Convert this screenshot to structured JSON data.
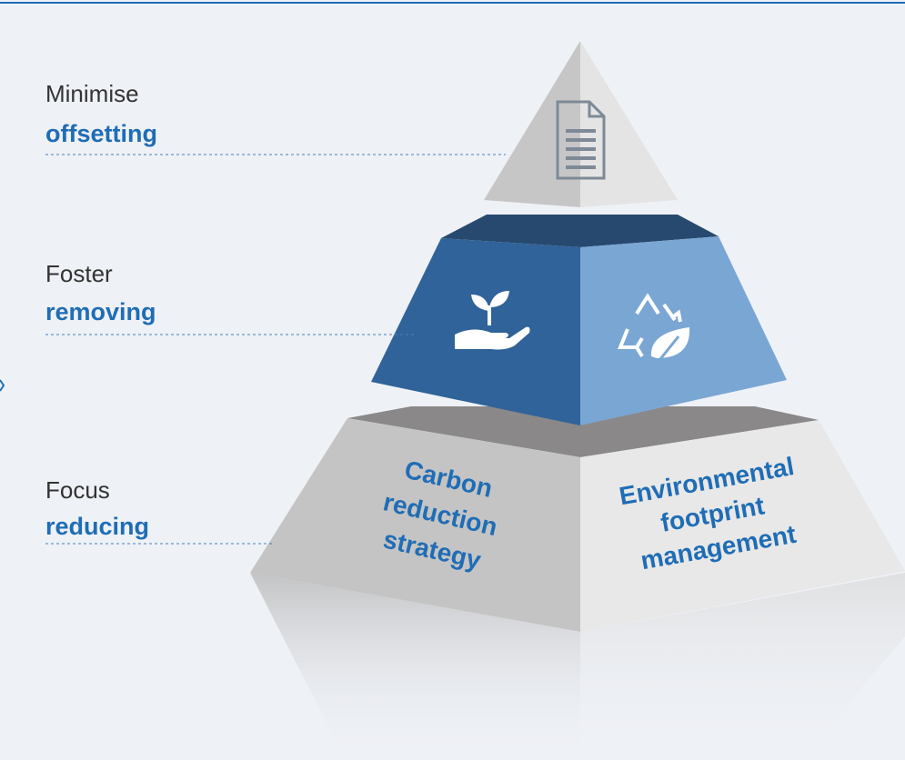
{
  "levels": [
    {
      "verb": "Minimise",
      "focus": "offsetting"
    },
    {
      "verb": "Foster",
      "focus": "removing"
    },
    {
      "verb": "Focus",
      "focus": "reducing"
    }
  ],
  "base_faces": {
    "left": [
      "Carbon",
      "reduction",
      "strategy"
    ],
    "right": [
      "Environmental",
      "footprint",
      "management"
    ]
  }
}
